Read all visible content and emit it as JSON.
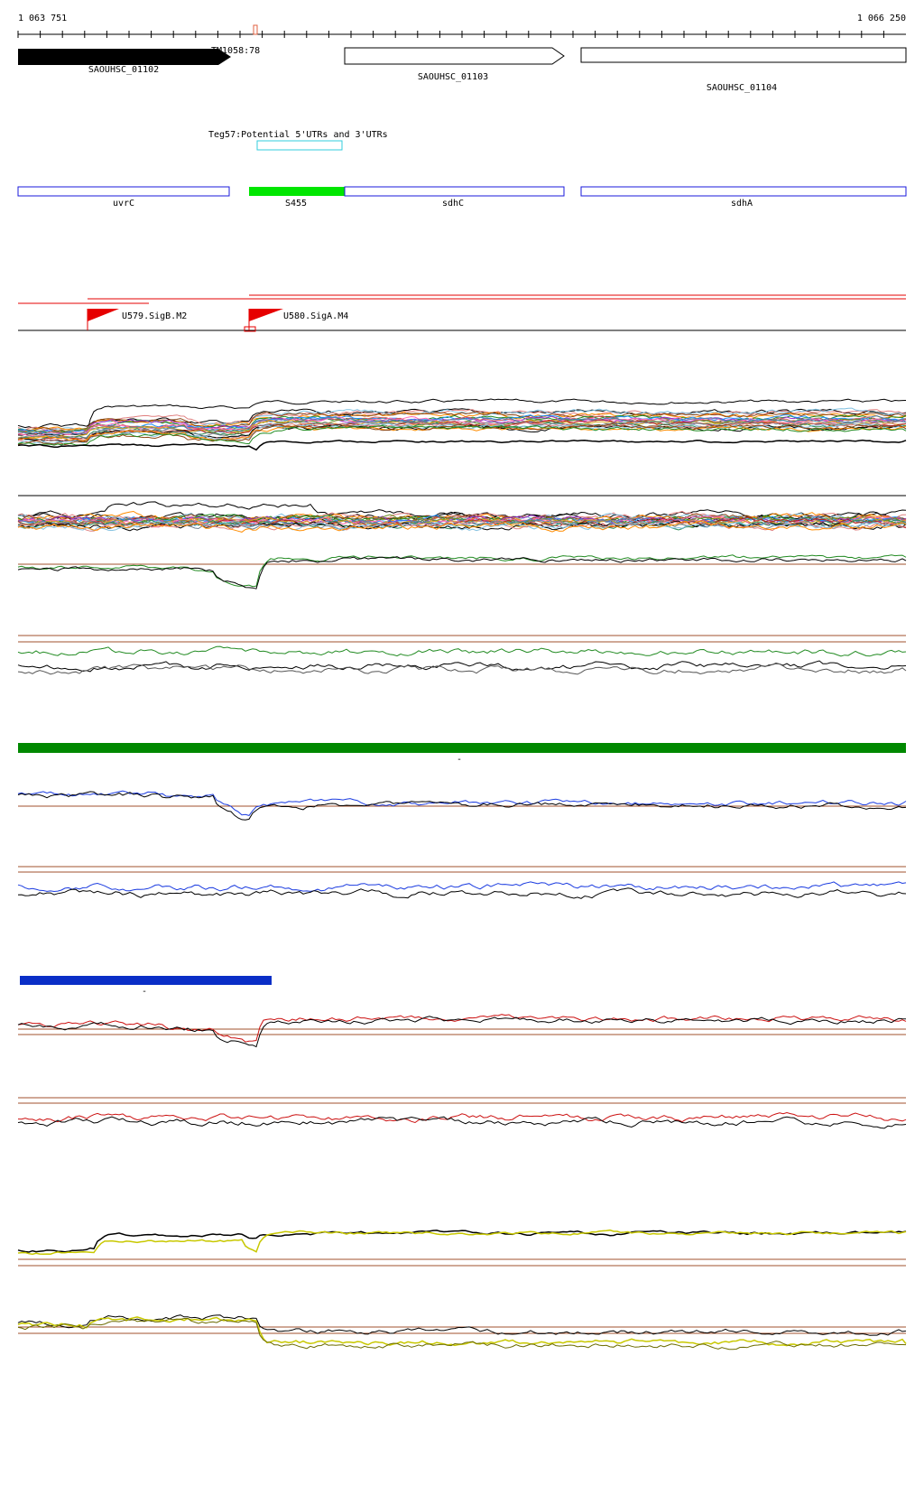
{
  "coordinates": {
    "start_label": "1 063 751",
    "end_label": "1 066 250"
  },
  "genes": [
    {
      "name": "SAOUHSC_01102",
      "strand": "+",
      "filled": true
    },
    {
      "name": "SAOUHSC_01103",
      "strand": "+",
      "filled": false
    },
    {
      "name": "SAOUHSC_01104",
      "strand": "+",
      "filled": false
    }
  ],
  "overlap_label": "TM1058:78",
  "utr_label": "Teg57:Potential 5'UTRs and 3'UTRs",
  "features": [
    {
      "name": "uvrC",
      "color": "#1a1adb",
      "filled": false
    },
    {
      "name": "S455",
      "color": "#00e600",
      "filled": true
    },
    {
      "name": "sdhC",
      "color": "#1a1adb",
      "filled": false
    },
    {
      "name": "sdhA",
      "color": "#1a1adb",
      "filled": false
    }
  ],
  "promoters": [
    {
      "name": "U579.SigB.M2",
      "color": "#e60000"
    },
    {
      "name": "U580.SigA.M4",
      "color": "#e60000"
    }
  ],
  "colors": {
    "track_green": "#008800",
    "track_blue": "#0a2ec7",
    "threshold_line": "#a0522d",
    "series_black": "#000000",
    "series_green": "#228b22",
    "series_blue": "#1a3be0",
    "series_red": "#cc1111",
    "series_yellow": "#c8c800"
  },
  "markers": {
    "minus_green": "-",
    "minus_blue": "-"
  }
}
